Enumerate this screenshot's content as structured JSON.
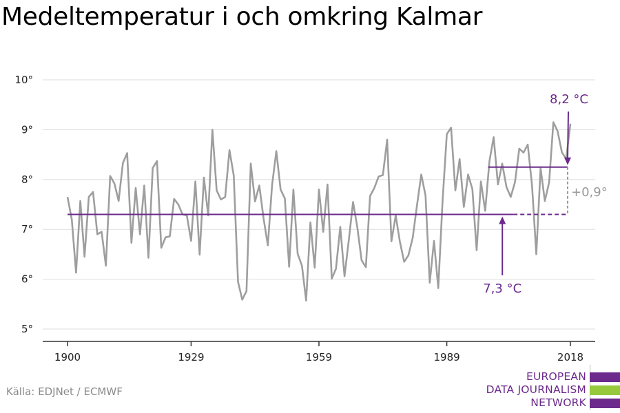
{
  "title": "Medeltemperatur i och omkring Kalmar",
  "source": "Källa: EDJNet / ECMWF",
  "logo": {
    "lines": [
      "EUROPEAN",
      "DATA JOURNALISM",
      "NETWORK"
    ],
    "colors": [
      "#6b2a8c",
      "#97c93d",
      "#6b2a8c"
    ]
  },
  "colors": {
    "series": "#9e9e9e",
    "accent": "#6b2a8c",
    "muted": "#999999",
    "grid": "#dddddd"
  },
  "chart_data": {
    "type": "line",
    "title": "Medeltemperatur i och omkring Kalmar",
    "xlabel": "",
    "ylabel": "",
    "xlim": [
      1900,
      2018
    ],
    "ylim": [
      5,
      10
    ],
    "x_ticks": [
      "1900",
      "1929",
      "1959",
      "1989",
      "2018"
    ],
    "y_ticks": [
      "5°",
      "6°",
      "7°",
      "8°",
      "9°",
      "10°"
    ],
    "grid": "horizontal",
    "series": [
      {
        "x": [
          1900,
          1901,
          1902,
          1903,
          1904,
          1905,
          1906,
          1907,
          1908,
          1909,
          1910,
          1911,
          1912,
          1913,
          1914,
          1915,
          1916,
          1917,
          1918,
          1919,
          1920,
          1921,
          1922,
          1923,
          1924,
          1925,
          1926,
          1927,
          1928,
          1929,
          1930,
          1931,
          1932,
          1933,
          1934,
          1935,
          1936,
          1937,
          1938,
          1939,
          1940,
          1941,
          1942,
          1943,
          1944,
          1945,
          1946,
          1947,
          1948,
          1949,
          1950,
          1951,
          1952,
          1953,
          1954,
          1955,
          1956,
          1957,
          1958,
          1959,
          1960,
          1961,
          1962,
          1963,
          1964,
          1965,
          1966,
          1967,
          1968,
          1969,
          1970,
          1971,
          1972,
          1973,
          1974,
          1975,
          1976,
          1977,
          1978,
          1979,
          1980,
          1981,
          1982,
          1983,
          1984,
          1985,
          1986,
          1987,
          1988,
          1989,
          1990,
          1991,
          1992,
          1993,
          1994,
          1995,
          1996,
          1997,
          1998,
          1999,
          2000,
          2001,
          2002,
          2003,
          2004,
          2005,
          2006,
          2007,
          2008,
          2009,
          2010,
          2011,
          2012,
          2013,
          2014,
          2015,
          2016,
          2017,
          2018
        ],
        "values": [
          7.65,
          7.2,
          6.13,
          7.57,
          6.45,
          7.65,
          7.75,
          6.9,
          6.95,
          6.27,
          8.07,
          7.92,
          7.57,
          8.33,
          8.53,
          6.73,
          7.83,
          6.9,
          7.88,
          6.43,
          8.23,
          8.37,
          6.63,
          6.84,
          6.86,
          7.61,
          7.5,
          7.3,
          7.28,
          6.77,
          7.96,
          6.49,
          8.04,
          7.28,
          9.0,
          7.78,
          7.6,
          7.65,
          8.59,
          8.08,
          5.95,
          5.59,
          5.76,
          8.32,
          7.56,
          7.88,
          7.22,
          6.68,
          7.88,
          8.57,
          7.8,
          7.62,
          6.25,
          7.8,
          6.51,
          6.27,
          5.57,
          7.14,
          6.23,
          7.8,
          6.95,
          7.9,
          6.01,
          6.21,
          7.05,
          6.06,
          6.78,
          7.55,
          7.04,
          6.38,
          6.24,
          7.67,
          7.83,
          8.06,
          8.09,
          8.8,
          6.76,
          7.28,
          6.75,
          6.35,
          6.48,
          6.83,
          7.48,
          8.1,
          7.68,
          5.93,
          6.77,
          5.82,
          7.56,
          8.91,
          9.04,
          7.78,
          8.41,
          7.45,
          8.1,
          7.81,
          6.58,
          7.96,
          7.37,
          8.37,
          8.85,
          7.9,
          8.32,
          7.85,
          7.65,
          7.95,
          8.62,
          8.54,
          8.7,
          7.88,
          6.5,
          8.23,
          7.57,
          7.94,
          9.15,
          8.97,
          8.55,
          8.41,
          9.12
        ]
      }
    ],
    "annotations": [
      {
        "label": "7,3 °C",
        "value": 7.3,
        "from": 1900,
        "to": 2018,
        "dashed_from": 2003
      },
      {
        "label": "8,2 °C",
        "value": 8.25,
        "from": 2000,
        "to": 2018
      },
      {
        "label": "+0,9°",
        "from_value": 7.3,
        "to_value": 8.25,
        "at": 2018
      }
    ]
  }
}
